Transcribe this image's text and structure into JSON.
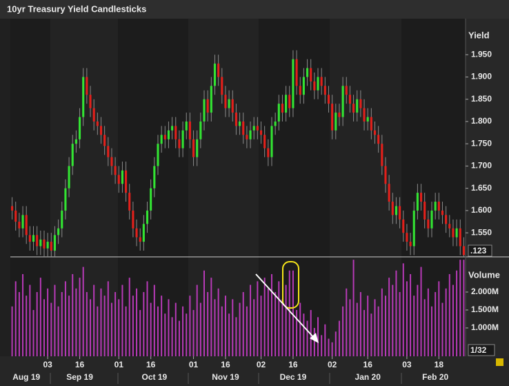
{
  "chart_data": {
    "type": "candlestick",
    "title": "10yr Treasury Yield Candlesticks",
    "y_label": "Yield",
    "y2_label": "Volume",
    "scale_labels": [
      ".123",
      "1/32"
    ],
    "open": [
      1.61,
      1.6,
      1.575,
      1.56,
      1.59,
      1.545,
      1.53,
      1.545,
      1.52,
      1.535,
      1.515,
      1.53,
      1.51,
      1.545,
      1.56,
      1.6,
      1.65,
      1.7,
      1.75,
      1.76,
      1.81,
      1.9,
      1.86,
      1.83,
      1.8,
      1.79,
      1.77,
      1.745,
      1.72,
      1.7,
      1.68,
      1.66,
      1.69,
      1.64,
      1.6,
      1.56,
      1.54,
      1.53,
      1.57,
      1.6,
      1.65,
      1.7,
      1.75,
      1.77,
      1.76,
      1.78,
      1.79,
      1.76,
      1.74,
      1.78,
      1.8,
      1.76,
      1.72,
      1.76,
      1.8,
      1.85,
      1.82,
      1.88,
      1.93,
      1.9,
      1.86,
      1.83,
      1.85,
      1.82,
      1.79,
      1.8,
      1.77,
      1.76,
      1.78,
      1.79,
      1.78,
      1.77,
      1.74,
      1.72,
      1.79,
      1.8,
      1.84,
      1.82,
      1.86,
      1.83,
      1.94,
      1.88,
      1.86,
      1.9,
      1.92,
      1.89,
      1.87,
      1.9,
      1.88,
      1.86,
      1.84,
      1.78,
      1.82,
      1.81,
      1.88,
      1.86,
      1.84,
      1.82,
      1.85,
      1.83,
      1.8,
      1.81,
      1.78,
      1.77,
      1.75,
      1.7,
      1.66,
      1.62,
      1.59,
      1.61,
      1.58,
      1.55,
      1.53,
      1.52,
      1.6,
      1.64,
      1.62,
      1.58,
      1.56,
      1.6,
      1.62,
      1.6,
      1.59,
      1.57,
      1.56,
      1.54,
      1.56,
      1.52
    ],
    "high": [
      1.63,
      1.62,
      1.595,
      1.61,
      1.61,
      1.565,
      1.565,
      1.565,
      1.555,
      1.555,
      1.55,
      1.55,
      1.565,
      1.58,
      1.62,
      1.67,
      1.72,
      1.77,
      1.78,
      1.83,
      1.92,
      1.92,
      1.88,
      1.85,
      1.82,
      1.81,
      1.79,
      1.765,
      1.74,
      1.72,
      1.7,
      1.71,
      1.71,
      1.66,
      1.62,
      1.58,
      1.56,
      1.59,
      1.62,
      1.67,
      1.72,
      1.77,
      1.79,
      1.79,
      1.8,
      1.81,
      1.81,
      1.78,
      1.8,
      1.82,
      1.82,
      1.78,
      1.78,
      1.82,
      1.87,
      1.87,
      1.9,
      1.95,
      1.95,
      1.92,
      1.88,
      1.87,
      1.87,
      1.84,
      1.82,
      1.82,
      1.79,
      1.8,
      1.81,
      1.81,
      1.8,
      1.79,
      1.76,
      1.81,
      1.82,
      1.86,
      1.86,
      1.88,
      1.88,
      1.96,
      1.96,
      1.9,
      1.92,
      1.94,
      1.94,
      1.91,
      1.92,
      1.92,
      1.9,
      1.88,
      1.86,
      1.84,
      1.84,
      1.9,
      1.9,
      1.88,
      1.86,
      1.87,
      1.87,
      1.85,
      1.83,
      1.83,
      1.8,
      1.79,
      1.77,
      1.72,
      1.68,
      1.64,
      1.63,
      1.63,
      1.6,
      1.57,
      1.55,
      1.62,
      1.66,
      1.66,
      1.64,
      1.6,
      1.62,
      1.64,
      1.64,
      1.62,
      1.61,
      1.59,
      1.58,
      1.58,
      1.58,
      1.54
    ],
    "low": [
      1.58,
      1.555,
      1.54,
      1.54,
      1.525,
      1.51,
      1.51,
      1.5,
      1.5,
      1.495,
      1.495,
      1.49,
      1.49,
      1.525,
      1.54,
      1.58,
      1.63,
      1.68,
      1.73,
      1.74,
      1.79,
      1.84,
      1.81,
      1.78,
      1.77,
      1.75,
      1.725,
      1.7,
      1.68,
      1.66,
      1.64,
      1.64,
      1.62,
      1.58,
      1.54,
      1.52,
      1.51,
      1.51,
      1.55,
      1.58,
      1.63,
      1.68,
      1.73,
      1.74,
      1.74,
      1.76,
      1.74,
      1.72,
      1.72,
      1.76,
      1.74,
      1.7,
      1.7,
      1.74,
      1.78,
      1.8,
      1.8,
      1.86,
      1.88,
      1.84,
      1.81,
      1.81,
      1.8,
      1.77,
      1.77,
      1.75,
      1.74,
      1.74,
      1.76,
      1.76,
      1.75,
      1.72,
      1.7,
      1.7,
      1.77,
      1.78,
      1.8,
      1.8,
      1.81,
      1.81,
      1.86,
      1.84,
      1.84,
      1.88,
      1.87,
      1.85,
      1.85,
      1.86,
      1.84,
      1.82,
      1.76,
      1.76,
      1.79,
      1.79,
      1.84,
      1.82,
      1.8,
      1.8,
      1.81,
      1.78,
      1.78,
      1.76,
      1.75,
      1.73,
      1.68,
      1.64,
      1.6,
      1.57,
      1.57,
      1.56,
      1.53,
      1.51,
      1.5,
      1.5,
      1.58,
      1.6,
      1.56,
      1.54,
      1.54,
      1.58,
      1.58,
      1.57,
      1.55,
      1.54,
      1.52,
      1.52,
      1.5,
      1.48
    ],
    "close": [
      1.6,
      1.575,
      1.56,
      1.59,
      1.545,
      1.53,
      1.545,
      1.52,
      1.535,
      1.515,
      1.53,
      1.51,
      1.545,
      1.56,
      1.6,
      1.65,
      1.7,
      1.75,
      1.76,
      1.81,
      1.9,
      1.86,
      1.83,
      1.8,
      1.79,
      1.77,
      1.745,
      1.72,
      1.7,
      1.68,
      1.66,
      1.69,
      1.64,
      1.6,
      1.56,
      1.54,
      1.53,
      1.57,
      1.6,
      1.65,
      1.7,
      1.75,
      1.77,
      1.76,
      1.78,
      1.79,
      1.76,
      1.74,
      1.78,
      1.8,
      1.76,
      1.72,
      1.76,
      1.8,
      1.85,
      1.82,
      1.88,
      1.93,
      1.9,
      1.86,
      1.83,
      1.85,
      1.82,
      1.79,
      1.8,
      1.77,
      1.76,
      1.78,
      1.79,
      1.78,
      1.77,
      1.74,
      1.72,
      1.79,
      1.8,
      1.84,
      1.82,
      1.86,
      1.83,
      1.94,
      1.88,
      1.86,
      1.9,
      1.92,
      1.89,
      1.87,
      1.9,
      1.88,
      1.86,
      1.84,
      1.78,
      1.82,
      1.81,
      1.88,
      1.86,
      1.84,
      1.82,
      1.85,
      1.83,
      1.8,
      1.81,
      1.78,
      1.77,
      1.75,
      1.7,
      1.66,
      1.62,
      1.59,
      1.61,
      1.58,
      1.55,
      1.53,
      1.52,
      1.6,
      1.64,
      1.62,
      1.58,
      1.56,
      1.6,
      1.62,
      1.6,
      1.59,
      1.57,
      1.56,
      1.54,
      1.56,
      1.52,
      1.5
    ],
    "volume": [
      1.6,
      2.3,
      2.0,
      2.5,
      1.9,
      2.2,
      1.5,
      2.0,
      2.4,
      1.8,
      2.1,
      1.7,
      2.2,
      1.6,
      2.0,
      2.3,
      1.9,
      2.5,
      2.1,
      2.4,
      2.7,
      2.0,
      1.8,
      2.2,
      1.6,
      2.1,
      1.9,
      2.3,
      1.7,
      2.0,
      1.8,
      2.2,
      1.6,
      2.4,
      1.9,
      2.1,
      1.5,
      2.0,
      2.3,
      1.7,
      2.2,
      1.6,
      1.9,
      1.4,
      1.8,
      1.3,
      1.7,
      1.2,
      1.6,
      1.4,
      1.9,
      1.5,
      2.2,
      1.7,
      2.6,
      2.0,
      2.4,
      1.8,
      2.1,
      1.6,
      1.9,
      1.4,
      1.8,
      1.3,
      1.7,
      2.0,
      1.6,
      2.2,
      1.8,
      2.3,
      1.9,
      2.4,
      2.1,
      2.5,
      2.0,
      2.3,
      1.8,
      2.2,
      2.6,
      2.6,
      1.5,
      1.7,
      1.4,
      1.2,
      1.5,
      1.0,
      1.3,
      0.8,
      1.1,
      0.7,
      0.6,
      0.9,
      1.2,
      1.6,
      2.1,
      1.8,
      2.9,
      1.7,
      2.0,
      1.5,
      1.9,
      1.4,
      1.8,
      1.6,
      2.1,
      1.9,
      2.4,
      2.2,
      2.6,
      2.0,
      2.8,
      2.3,
      2.5,
      1.9,
      2.2,
      2.7,
      1.8,
      2.1,
      1.6,
      2.0,
      2.3,
      1.7,
      2.1,
      2.5,
      2.2,
      2.6,
      2.9,
      2.9
    ],
    "up_color": "#33e433",
    "down_color": "#e3201b",
    "wick_color": "#8c8c8c",
    "volume_color": "#b83ab8",
    "xlim": [
      -0.5,
      127.5
    ],
    "ylim": [
      1.496,
      2.031
    ],
    "yticks": [
      {
        "value": 1.95,
        "label": "1.950"
      },
      {
        "value": 1.9,
        "label": "1.900"
      },
      {
        "value": 1.85,
        "label": "1.850"
      },
      {
        "value": 1.8,
        "label": "1.800"
      },
      {
        "value": 1.75,
        "label": "1.750"
      },
      {
        "value": 1.7,
        "label": "1.700"
      },
      {
        "value": 1.65,
        "label": "1.650"
      },
      {
        "value": 1.6,
        "label": "1.600"
      },
      {
        "value": 1.55,
        "label": "1.550"
      }
    ],
    "y2lim": [
      0.21,
      2.98
    ],
    "y2ticks": [
      {
        "value": 2,
        "label": "2.000M"
      },
      {
        "value": 1.5,
        "label": "1.500M"
      },
      {
        "value": 1,
        "label": "1.000M"
      }
    ],
    "xticks": [
      {
        "value": 10,
        "label": "03"
      },
      {
        "value": 19,
        "label": "16"
      },
      {
        "value": 30,
        "label": "01"
      },
      {
        "value": 39,
        "label": "16"
      },
      {
        "value": 51,
        "label": "01"
      },
      {
        "value": 60,
        "label": "16"
      },
      {
        "value": 70,
        "label": "02"
      },
      {
        "value": 79,
        "label": "16"
      },
      {
        "value": 90,
        "label": "02"
      },
      {
        "value": 100,
        "label": "16"
      },
      {
        "value": 111,
        "label": "03"
      },
      {
        "value": 120,
        "label": "18"
      }
    ],
    "month_ticks": [
      {
        "value": 4,
        "label": "Aug 19"
      },
      {
        "value": 19,
        "label": "Sep 19"
      },
      {
        "value": 40,
        "label": "Oct 19"
      },
      {
        "value": 60,
        "label": "Nov 19"
      },
      {
        "value": 79,
        "label": "Dec 19"
      },
      {
        "value": 100,
        "label": "Jan 20"
      },
      {
        "value": 119,
        "label": "Feb 20"
      }
    ]
  }
}
